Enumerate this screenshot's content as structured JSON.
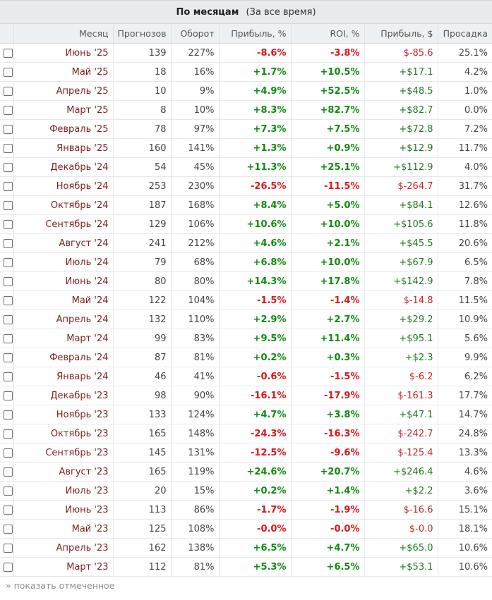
{
  "header": {
    "title": "По месяцам",
    "subtitle": "(За все время)"
  },
  "columns": [
    "Месяц",
    "Прогнозов",
    "Оборот",
    "Прибыль, %",
    "ROI, %",
    "Прибыль, $",
    "Просадка"
  ],
  "rows": [
    {
      "month": "Июнь '25",
      "forecasts": "139",
      "turnover": "227%",
      "profit_pct": "-8.6%",
      "roi": "-3.8%",
      "profit_usd": "$-85.6",
      "drawdown": "25.1%"
    },
    {
      "month": "Май '25",
      "forecasts": "18",
      "turnover": "16%",
      "profit_pct": "+1.7%",
      "roi": "+10.5%",
      "profit_usd": "+$17.1",
      "drawdown": "4.2%"
    },
    {
      "month": "Апрель '25",
      "forecasts": "10",
      "turnover": "9%",
      "profit_pct": "+4.9%",
      "roi": "+52.5%",
      "profit_usd": "+$48.5",
      "drawdown": "1.0%"
    },
    {
      "month": "Март '25",
      "forecasts": "8",
      "turnover": "10%",
      "profit_pct": "+8.3%",
      "roi": "+82.7%",
      "profit_usd": "+$82.7",
      "drawdown": "0.0%"
    },
    {
      "month": "Февраль '25",
      "forecasts": "78",
      "turnover": "97%",
      "profit_pct": "+7.3%",
      "roi": "+7.5%",
      "profit_usd": "+$72.8",
      "drawdown": "7.2%"
    },
    {
      "month": "Январь '25",
      "forecasts": "160",
      "turnover": "141%",
      "profit_pct": "+1.3%",
      "roi": "+0.9%",
      "profit_usd": "+$12.9",
      "drawdown": "11.7%"
    },
    {
      "month": "Декабрь '24",
      "forecasts": "54",
      "turnover": "45%",
      "profit_pct": "+11.3%",
      "roi": "+25.1%",
      "profit_usd": "+$112.9",
      "drawdown": "4.0%"
    },
    {
      "month": "Ноябрь '24",
      "forecasts": "253",
      "turnover": "230%",
      "profit_pct": "-26.5%",
      "roi": "-11.5%",
      "profit_usd": "$-264.7",
      "drawdown": "31.7%"
    },
    {
      "month": "Октябрь '24",
      "forecasts": "187",
      "turnover": "168%",
      "profit_pct": "+8.4%",
      "roi": "+5.0%",
      "profit_usd": "+$84.1",
      "drawdown": "12.6%"
    },
    {
      "month": "Сентябрь '24",
      "forecasts": "129",
      "turnover": "106%",
      "profit_pct": "+10.6%",
      "roi": "+10.0%",
      "profit_usd": "+$105.6",
      "drawdown": "11.8%"
    },
    {
      "month": "Август '24",
      "forecasts": "241",
      "turnover": "212%",
      "profit_pct": "+4.6%",
      "roi": "+2.1%",
      "profit_usd": "+$45.5",
      "drawdown": "20.6%"
    },
    {
      "month": "Июль '24",
      "forecasts": "79",
      "turnover": "68%",
      "profit_pct": "+6.8%",
      "roi": "+10.0%",
      "profit_usd": "+$67.9",
      "drawdown": "6.5%"
    },
    {
      "month": "Июнь '24",
      "forecasts": "80",
      "turnover": "80%",
      "profit_pct": "+14.3%",
      "roi": "+17.8%",
      "profit_usd": "+$142.9",
      "drawdown": "7.8%"
    },
    {
      "month": "Май '24",
      "forecasts": "122",
      "turnover": "104%",
      "profit_pct": "-1.5%",
      "roi": "-1.4%",
      "profit_usd": "$-14.8",
      "drawdown": "11.5%"
    },
    {
      "month": "Апрель '24",
      "forecasts": "132",
      "turnover": "110%",
      "profit_pct": "+2.9%",
      "roi": "+2.7%",
      "profit_usd": "+$29.2",
      "drawdown": "10.9%"
    },
    {
      "month": "Март '24",
      "forecasts": "99",
      "turnover": "83%",
      "profit_pct": "+9.5%",
      "roi": "+11.4%",
      "profit_usd": "+$95.1",
      "drawdown": "5.6%"
    },
    {
      "month": "Февраль '24",
      "forecasts": "87",
      "turnover": "81%",
      "profit_pct": "+0.2%",
      "roi": "+0.3%",
      "profit_usd": "+$2.3",
      "drawdown": "9.9%"
    },
    {
      "month": "Январь '24",
      "forecasts": "46",
      "turnover": "41%",
      "profit_pct": "-0.6%",
      "roi": "-1.5%",
      "profit_usd": "$-6.2",
      "drawdown": "6.2%"
    },
    {
      "month": "Декабрь '23",
      "forecasts": "98",
      "turnover": "90%",
      "profit_pct": "-16.1%",
      "roi": "-17.9%",
      "profit_usd": "$-161.3",
      "drawdown": "17.7%"
    },
    {
      "month": "Ноябрь '23",
      "forecasts": "133",
      "turnover": "124%",
      "profit_pct": "+4.7%",
      "roi": "+3.8%",
      "profit_usd": "+$47.1",
      "drawdown": "14.7%"
    },
    {
      "month": "Октябрь '23",
      "forecasts": "165",
      "turnover": "148%",
      "profit_pct": "-24.3%",
      "roi": "-16.3%",
      "profit_usd": "$-242.7",
      "drawdown": "24.8%"
    },
    {
      "month": "Сентябрь '23",
      "forecasts": "145",
      "turnover": "131%",
      "profit_pct": "-12.5%",
      "roi": "-9.6%",
      "profit_usd": "$-125.4",
      "drawdown": "13.3%"
    },
    {
      "month": "Август '23",
      "forecasts": "165",
      "turnover": "119%",
      "profit_pct": "+24.6%",
      "roi": "+20.7%",
      "profit_usd": "+$246.4",
      "drawdown": "4.6%"
    },
    {
      "month": "Июль '23",
      "forecasts": "20",
      "turnover": "15%",
      "profit_pct": "+0.2%",
      "roi": "+1.4%",
      "profit_usd": "+$2.2",
      "drawdown": "3.6%"
    },
    {
      "month": "Июнь '23",
      "forecasts": "113",
      "turnover": "86%",
      "profit_pct": "-1.7%",
      "roi": "-1.9%",
      "profit_usd": "$-16.6",
      "drawdown": "15.1%"
    },
    {
      "month": "Май '23",
      "forecasts": "125",
      "turnover": "108%",
      "profit_pct": "-0.0%",
      "roi": "-0.0%",
      "profit_usd": "$-0.0",
      "drawdown": "18.1%"
    },
    {
      "month": "Апрель '23",
      "forecasts": "162",
      "turnover": "138%",
      "profit_pct": "+6.5%",
      "roi": "+4.7%",
      "profit_usd": "+$65.0",
      "drawdown": "10.6%"
    },
    {
      "month": "Март '23",
      "forecasts": "112",
      "turnover": "81%",
      "profit_pct": "+5.3%",
      "roi": "+6.5%",
      "profit_usd": "+$53.1",
      "drawdown": "10.6%"
    }
  ],
  "footer": {
    "show_selected": "» показать отмеченное"
  },
  "colors": {
    "positive": "#0f8a0f",
    "negative": "#d8181b",
    "month": "#7a1f1f"
  }
}
